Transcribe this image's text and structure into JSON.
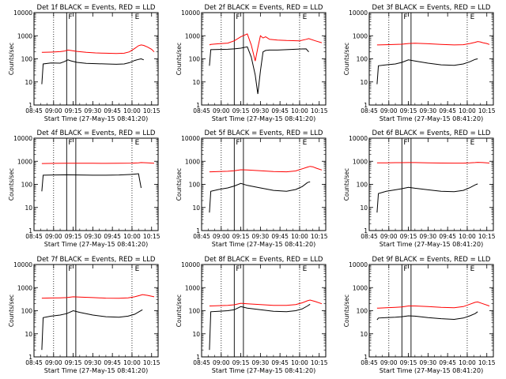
{
  "figure": {
    "xlabel": "Start Time (27-May-15 08:41:20)",
    "ylabel": "Counts/sec",
    "x_tick_labels": [
      "08:45",
      "09:00",
      "09:15",
      "09:30",
      "09:45",
      "10:00",
      "10:15"
    ],
    "y_tick_labels": [
      "1",
      "10",
      "100",
      "1000",
      "10000"
    ],
    "colors": {
      "events": "#000000",
      "lld": "#ff0000"
    }
  },
  "chart_data": [
    {
      "type": "line",
      "title": "Det 1f BLACK = Events, RED = LLD",
      "marker_labels": [
        "F",
        "E"
      ],
      "xlim": [
        "08:45",
        "10:20"
      ],
      "ylim": [
        1,
        10000
      ],
      "yscale": "log",
      "x": [
        "08:51",
        "08:52",
        "08:58",
        "09:05",
        "09:08",
        "09:11",
        "09:13",
        "09:18",
        "09:25",
        "09:32",
        "09:40",
        "09:48",
        "09:54",
        "09:58",
        "10:02",
        "10:05",
        "10:07",
        "10:09",
        "10:12",
        "10:15",
        "10:17"
      ],
      "series": [
        {
          "name": "Events",
          "values": [
            8,
            60,
            66,
            65,
            75,
            90,
            82,
            70,
            64,
            62,
            60,
            58,
            60,
            68,
            85,
            95,
            100,
            90,
            null,
            null,
            null
          ]
        },
        {
          "name": "LLD",
          "values": [
            190,
            190,
            195,
            205,
            215,
            240,
            230,
            210,
            190,
            180,
            175,
            170,
            175,
            200,
            280,
            370,
            400,
            380,
            320,
            260,
            200
          ]
        }
      ]
    },
    {
      "type": "line",
      "title": "Det 2f BLACK = Events, RED = LLD",
      "marker_labels": [
        "F",
        "E"
      ],
      "xlim": [
        "08:45",
        "10:20"
      ],
      "ylim": [
        1,
        10000
      ],
      "yscale": "log",
      "x": [
        "08:51",
        "08:52",
        "08:58",
        "09:05",
        "09:10",
        "09:15",
        "09:20",
        "09:23",
        "09:26",
        "09:28",
        "09:30",
        "09:32",
        "09:34",
        "09:37",
        "09:43",
        "09:50",
        "10:00",
        "10:05",
        "10:07",
        "10:12",
        "10:17"
      ],
      "series": [
        {
          "name": "Events",
          "values": [
            50,
            250,
            255,
            260,
            270,
            290,
            330,
            120,
            20,
            3,
            30,
            200,
            230,
            240,
            240,
            250,
            265,
            270,
            200,
            null,
            null
          ]
        },
        {
          "name": "LLD",
          "values": [
            400,
            420,
            450,
            480,
            600,
            900,
            1200,
            400,
            80,
            300,
            1000,
            800,
            900,
            700,
            650,
            620,
            600,
            700,
            750,
            600,
            500
          ]
        }
      ]
    },
    {
      "type": "line",
      "title": "Det 3f BLACK = Events, RED = LLD",
      "marker_labels": [
        "F",
        "E"
      ],
      "xlim": [
        "08:45",
        "10:20"
      ],
      "ylim": [
        1,
        10000
      ],
      "yscale": "log",
      "x": [
        "08:51",
        "08:52",
        "08:58",
        "09:05",
        "09:10",
        "09:15",
        "09:20",
        "09:30",
        "09:40",
        "09:50",
        "09:57",
        "10:02",
        "10:06",
        "10:08",
        "10:10",
        "10:12",
        "10:15",
        "10:17"
      ],
      "series": [
        {
          "name": "Events",
          "values": [
            8,
            50,
            55,
            60,
            70,
            90,
            80,
            65,
            55,
            52,
            60,
            75,
            95,
            100,
            null,
            null,
            null,
            null
          ]
        },
        {
          "name": "LLD",
          "values": [
            400,
            400,
            410,
            420,
            430,
            460,
            470,
            450,
            420,
            400,
            410,
            460,
            520,
            560,
            540,
            500,
            460,
            420
          ]
        }
      ]
    },
    {
      "type": "line",
      "title": "Det 4f BLACK = Events, RED = LLD",
      "marker_labels": [
        "F",
        "E"
      ],
      "xlim": [
        "08:45",
        "10:20"
      ],
      "ylim": [
        1,
        10000
      ],
      "yscale": "log",
      "x": [
        "08:51",
        "08:52",
        "09:00",
        "09:10",
        "09:20",
        "09:30",
        "09:40",
        "09:50",
        "10:00",
        "10:05",
        "10:07",
        "10:12",
        "10:17"
      ],
      "series": [
        {
          "name": "Events",
          "values": [
            50,
            250,
            255,
            260,
            255,
            250,
            250,
            255,
            270,
            290,
            70,
            null,
            null
          ]
        },
        {
          "name": "LLD",
          "values": [
            800,
            800,
            810,
            820,
            820,
            815,
            810,
            815,
            830,
            860,
            880,
            860,
            820
          ]
        }
      ]
    },
    {
      "type": "line",
      "title": "Det 5f BLACK = Events, RED = LLD",
      "marker_labels": [
        "F",
        "E"
      ],
      "xlim": [
        "08:45",
        "10:20"
      ],
      "ylim": [
        1,
        10000
      ],
      "yscale": "log",
      "x": [
        "08:51",
        "08:52",
        "08:58",
        "09:05",
        "09:10",
        "09:15",
        "09:20",
        "09:30",
        "09:40",
        "09:50",
        "09:57",
        "10:02",
        "10:06",
        "10:08",
        "10:10",
        "10:13",
        "10:17"
      ],
      "series": [
        {
          "name": "Events",
          "values": [
            6,
            50,
            60,
            70,
            85,
            110,
            90,
            70,
            55,
            50,
            60,
            80,
            120,
            130,
            null,
            null,
            null
          ]
        },
        {
          "name": "LLD",
          "values": [
            350,
            350,
            360,
            370,
            390,
            430,
            420,
            390,
            360,
            350,
            380,
            470,
            560,
            600,
            580,
            500,
            420
          ]
        }
      ]
    },
    {
      "type": "line",
      "title": "Det 6f BLACK = Events, RED = LLD",
      "marker_labels": [
        "F",
        "E"
      ],
      "xlim": [
        "08:45",
        "10:20"
      ],
      "ylim": [
        1,
        10000
      ],
      "yscale": "log",
      "x": [
        "08:51",
        "08:52",
        "08:58",
        "09:05",
        "09:10",
        "09:15",
        "09:20",
        "09:30",
        "09:40",
        "09:50",
        "09:57",
        "10:02",
        "10:06",
        "10:08",
        "10:12",
        "10:17"
      ],
      "series": [
        {
          "name": "Events",
          "values": [
            6,
            40,
            50,
            58,
            65,
            75,
            68,
            58,
            50,
            48,
            55,
            72,
            95,
            105,
            null,
            null
          ]
        },
        {
          "name": "LLD",
          "values": [
            850,
            860,
            860,
            870,
            870,
            880,
            880,
            860,
            840,
            830,
            830,
            850,
            880,
            900,
            880,
            840
          ]
        }
      ]
    },
    {
      "type": "line",
      "title": "Det 7f BLACK = Events, RED = LLD",
      "marker_labels": [
        "F",
        "E"
      ],
      "xlim": [
        "08:45",
        "10:20"
      ],
      "ylim": [
        1,
        10000
      ],
      "yscale": "log",
      "x": [
        "08:51",
        "08:52",
        "08:58",
        "09:05",
        "09:10",
        "09:15",
        "09:20",
        "09:30",
        "09:40",
        "09:50",
        "09:57",
        "10:02",
        "10:06",
        "10:08",
        "10:12",
        "10:17"
      ],
      "series": [
        {
          "name": "Events",
          "values": [
            2,
            50,
            58,
            65,
            75,
            100,
            85,
            65,
            55,
            52,
            58,
            70,
            95,
            110,
            null,
            null
          ]
        },
        {
          "name": "LLD",
          "values": [
            350,
            350,
            355,
            360,
            370,
            400,
            390,
            370,
            350,
            345,
            360,
            400,
            460,
            500,
            460,
            400
          ]
        }
      ]
    },
    {
      "type": "line",
      "title": "Det 8f BLACK = Events, RED = LLD",
      "marker_labels": [
        "F",
        "E"
      ],
      "xlim": [
        "08:45",
        "10:20"
      ],
      "ylim": [
        1,
        10000
      ],
      "yscale": "log",
      "x": [
        "08:51",
        "08:52",
        "08:58",
        "09:05",
        "09:10",
        "09:15",
        "09:20",
        "09:30",
        "09:40",
        "09:50",
        "09:57",
        "10:02",
        "10:06",
        "10:08",
        "10:12",
        "10:17"
      ],
      "series": [
        {
          "name": "Events",
          "values": [
            2,
            90,
            95,
            100,
            110,
            150,
            130,
            110,
            95,
            90,
            100,
            120,
            160,
            190,
            null,
            null
          ]
        },
        {
          "name": "LLD",
          "values": [
            160,
            160,
            165,
            170,
            180,
            210,
            200,
            185,
            170,
            170,
            185,
            220,
            270,
            290,
            250,
            200
          ]
        }
      ]
    },
    {
      "type": "line",
      "title": "Det 9f BLACK = Events, RED = LLD",
      "marker_labels": [
        "F",
        "E"
      ],
      "xlim": [
        "08:45",
        "10:20"
      ],
      "ylim": [
        1,
        10000
      ],
      "yscale": "log",
      "x": [
        "08:51",
        "08:52",
        "08:58",
        "09:05",
        "09:10",
        "09:15",
        "09:20",
        "09:30",
        "09:40",
        "09:50",
        "09:57",
        "10:02",
        "10:06",
        "10:08",
        "10:12",
        "10:17"
      ],
      "series": [
        {
          "name": "Events",
          "values": [
            40,
            48,
            50,
            52,
            55,
            60,
            58,
            50,
            45,
            42,
            48,
            60,
            75,
            90,
            null,
            null
          ]
        },
        {
          "name": "LLD",
          "values": [
            130,
            130,
            135,
            140,
            145,
            160,
            160,
            150,
            140,
            135,
            150,
            190,
            230,
            240,
            200,
            160
          ]
        }
      ]
    }
  ]
}
